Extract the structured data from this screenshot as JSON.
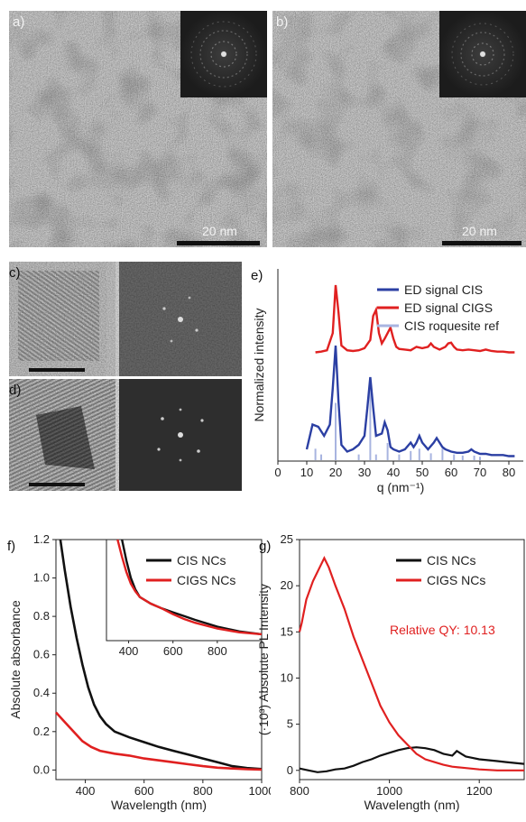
{
  "panels": {
    "a": {
      "label": "a)",
      "scalebar": "20 nm"
    },
    "b": {
      "label": "b)",
      "scalebar": "20 nm"
    },
    "c": {
      "label": "c)"
    },
    "d": {
      "label": "d)"
    }
  },
  "chart_data": [
    {
      "id": "e",
      "panel_label": "e)",
      "type": "line",
      "xlabel": "q (nm⁻¹)",
      "ylabel": "Normalized intensity",
      "xlim": [
        0,
        85
      ],
      "xticks": [
        "0",
        "10",
        "20",
        "30",
        "40",
        "50",
        "60",
        "70",
        "80"
      ],
      "legend": "top-right",
      "colors": {
        "cis": "#2b3fa3",
        "cigs": "#e02020",
        "ref": "#a8b4e0"
      },
      "series": [
        {
          "name": "ED signal CIS",
          "x": [
            10,
            12,
            14,
            16,
            18,
            19,
            20,
            21,
            22,
            24,
            26,
            28,
            30,
            31,
            32,
            33,
            34,
            36,
            37,
            38,
            39,
            40,
            42,
            44,
            46,
            47,
            48,
            49,
            50,
            52,
            54,
            55,
            56,
            57,
            58,
            60,
            62,
            64,
            66,
            67,
            68,
            70,
            72,
            74,
            76,
            78,
            80,
            82
          ],
          "y": [
            0.08,
            0.3,
            0.28,
            0.2,
            0.3,
            0.62,
            1.0,
            0.5,
            0.12,
            0.06,
            0.08,
            0.12,
            0.2,
            0.45,
            0.72,
            0.45,
            0.2,
            0.22,
            0.32,
            0.25,
            0.1,
            0.08,
            0.06,
            0.08,
            0.14,
            0.1,
            0.14,
            0.2,
            0.14,
            0.08,
            0.14,
            0.18,
            0.14,
            0.1,
            0.08,
            0.06,
            0.05,
            0.05,
            0.06,
            0.08,
            0.06,
            0.04,
            0.04,
            0.03,
            0.03,
            0.03,
            0.02,
            0.02
          ]
        },
        {
          "name": "ED signal CIGS",
          "x": [
            13,
            15,
            17,
            19,
            20,
            21,
            22,
            24,
            26,
            28,
            30,
            32,
            33,
            34,
            35,
            36,
            37,
            38,
            39,
            40,
            41,
            42,
            44,
            46,
            48,
            50,
            52,
            53,
            54,
            56,
            58,
            59,
            60,
            61,
            62,
            64,
            66,
            68,
            70,
            72,
            74,
            76,
            78,
            80,
            82
          ],
          "y": [
            0.02,
            0.03,
            0.05,
            0.3,
            1.0,
            0.6,
            0.12,
            0.05,
            0.04,
            0.05,
            0.08,
            0.2,
            0.55,
            0.64,
            0.3,
            0.15,
            0.22,
            0.3,
            0.38,
            0.22,
            0.1,
            0.07,
            0.06,
            0.05,
            0.1,
            0.08,
            0.1,
            0.15,
            0.1,
            0.06,
            0.1,
            0.15,
            0.16,
            0.1,
            0.06,
            0.05,
            0.06,
            0.05,
            0.04,
            0.06,
            0.04,
            0.03,
            0.03,
            0.02,
            0.02
          ]
        },
        {
          "name": "CIS roquesite ref",
          "x": [
            13,
            15,
            20,
            28,
            32,
            34,
            38,
            42,
            46,
            49,
            53,
            57,
            61,
            64,
            68,
            70
          ],
          "y": [
            0.1,
            0.05,
            0.5,
            0.05,
            0.7,
            0.05,
            0.15,
            0.05,
            0.08,
            0.1,
            0.06,
            0.1,
            0.05,
            0.04,
            0.04,
            0.03
          ]
        }
      ]
    },
    {
      "id": "f",
      "panel_label": "f)",
      "type": "line",
      "xlabel": "Wavelength (nm)",
      "ylabel": "Absolute absorbance",
      "xlim": [
        300,
        1000
      ],
      "ylim": [
        -0.05,
        1.2
      ],
      "xticks": [
        "400",
        "600",
        "800",
        "1000"
      ],
      "yticks": [
        "0.0",
        "0.2",
        "0.4",
        "0.6",
        "0.8",
        "1.0",
        "1.2"
      ],
      "legend": "top-right",
      "series": [
        {
          "name": "CIS NCs",
          "x": [
            315,
            330,
            350,
            370,
            390,
            410,
            430,
            450,
            470,
            500,
            550,
            600,
            650,
            700,
            750,
            800,
            850,
            900,
            950,
            1000
          ],
          "y": [
            1.2,
            1.04,
            0.85,
            0.69,
            0.55,
            0.43,
            0.34,
            0.28,
            0.24,
            0.2,
            0.17,
            0.145,
            0.12,
            0.1,
            0.08,
            0.06,
            0.04,
            0.02,
            0.01,
            0.005
          ]
        },
        {
          "name": "CIGS NCs",
          "x": [
            300,
            330,
            360,
            390,
            420,
            450,
            500,
            550,
            600,
            650,
            700,
            750,
            800,
            850,
            900,
            950,
            1000
          ],
          "y": [
            0.3,
            0.25,
            0.2,
            0.15,
            0.12,
            0.1,
            0.085,
            0.075,
            0.06,
            0.05,
            0.04,
            0.03,
            0.02,
            0.012,
            0.008,
            0.004,
            0.002
          ]
        }
      ],
      "inset": {
        "xlim": [
          300,
          1000
        ],
        "xticks": [
          "400",
          "600",
          "800"
        ],
        "series": [
          {
            "name": "CIS NCs",
            "x": [
              370,
              390,
              410,
              430,
              450,
              500,
              550,
              600,
              650,
              700,
              800,
              900,
              1000
            ],
            "y": [
              1.0,
              0.78,
              0.6,
              0.48,
              0.4,
              0.33,
              0.28,
              0.24,
              0.2,
              0.16,
              0.09,
              0.04,
              0.01
            ]
          },
          {
            "name": "CIGS NCs",
            "x": [
              350,
              370,
              390,
              410,
              430,
              450,
              500,
              550,
              600,
              650,
              700,
              800,
              900,
              1000
            ],
            "y": [
              1.0,
              0.82,
              0.66,
              0.54,
              0.46,
              0.4,
              0.33,
              0.28,
              0.22,
              0.17,
              0.13,
              0.07,
              0.03,
              0.01
            ]
          }
        ]
      }
    },
    {
      "id": "g",
      "panel_label": "g)",
      "type": "line",
      "xlabel": "Wavelength (nm)",
      "ylabel": "(·10³) Absolute PL Intensity",
      "xlim": [
        800,
        1300
      ],
      "ylim": [
        -1,
        25
      ],
      "xticks": [
        "800",
        "1000",
        "1200"
      ],
      "yticks": [
        "0",
        "5",
        "10",
        "15",
        "20",
        "25"
      ],
      "legend": "top-right",
      "annotation": "Relative QY: 10.13",
      "series": [
        {
          "name": "CIS NCs",
          "x": [
            800,
            820,
            840,
            860,
            880,
            900,
            920,
            940,
            960,
            980,
            1000,
            1020,
            1040,
            1060,
            1080,
            1100,
            1120,
            1140,
            1150,
            1160,
            1170,
            1180,
            1200,
            1220,
            1240,
            1260,
            1280,
            1300
          ],
          "y": [
            0.2,
            0.0,
            -0.2,
            -0.1,
            0.1,
            0.2,
            0.5,
            0.9,
            1.2,
            1.6,
            1.9,
            2.2,
            2.4,
            2.5,
            2.4,
            2.2,
            1.8,
            1.6,
            2.1,
            1.8,
            1.5,
            1.4,
            1.2,
            1.1,
            1.0,
            0.9,
            0.8,
            0.7
          ]
        },
        {
          "name": "CIGS NCs",
          "x": [
            800,
            805,
            815,
            830,
            845,
            855,
            865,
            880,
            900,
            920,
            940,
            960,
            980,
            1000,
            1020,
            1040,
            1060,
            1080,
            1100,
            1120,
            1140,
            1160,
            1180,
            1200,
            1240,
            1280,
            1300
          ],
          "y": [
            15,
            16,
            18.5,
            20.5,
            22,
            23,
            22,
            20,
            17.5,
            14.5,
            12,
            9.5,
            7,
            5.2,
            3.8,
            2.8,
            1.8,
            1.2,
            0.9,
            0.6,
            0.4,
            0.3,
            0.2,
            0.1,
            0.0,
            0.0,
            0.0
          ]
        }
      ]
    }
  ]
}
